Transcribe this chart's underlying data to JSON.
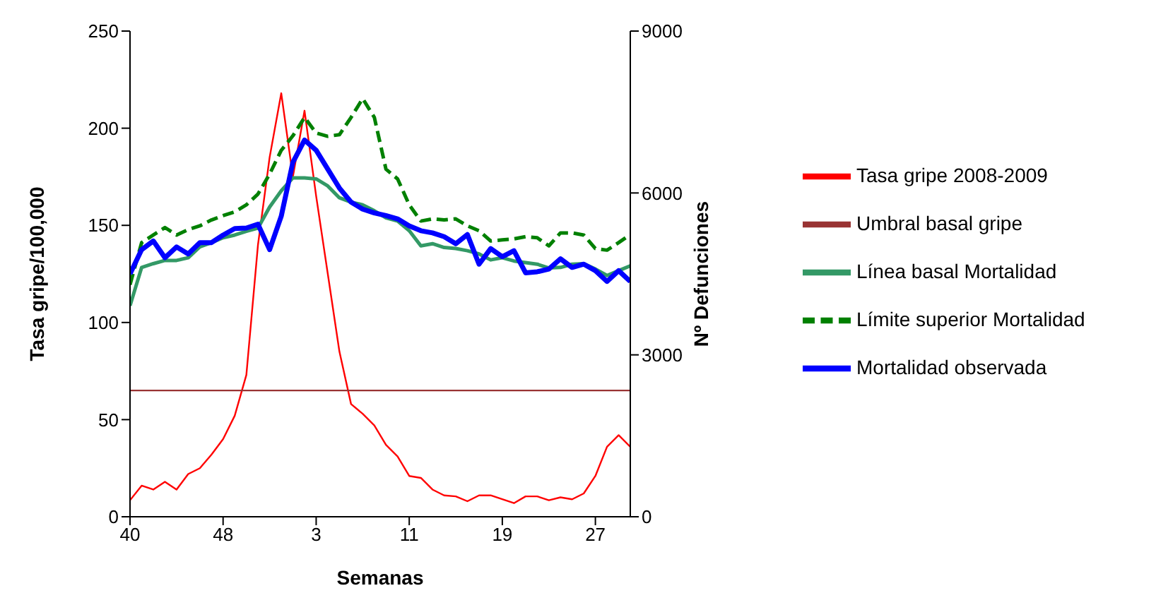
{
  "chart_data": {
    "type": "line",
    "categories": [
      "40",
      null,
      null,
      null,
      null,
      null,
      null,
      null,
      "48",
      null,
      null,
      null,
      null,
      null,
      null,
      null,
      "3",
      null,
      null,
      null,
      null,
      null,
      null,
      null,
      "11",
      null,
      null,
      null,
      null,
      null,
      null,
      null,
      "19",
      null,
      null,
      null,
      null,
      null,
      null,
      null,
      "27",
      null,
      null,
      null
    ],
    "series": [
      {
        "name": "Tasa gripe 2008-2009",
        "color": "#ff0000",
        "values": [
          8.5,
          16,
          14,
          18,
          14,
          22,
          25,
          32,
          40,
          52,
          73,
          140,
          185,
          218,
          175,
          209,
          165,
          125,
          85,
          58,
          53,
          47,
          37,
          31,
          21,
          20,
          14,
          11,
          10.5,
          8,
          11,
          11,
          9,
          7,
          10.5,
          10.5,
          8.5,
          10,
          9,
          12,
          21,
          36,
          42,
          36
        ]
      },
      {
        "name": "Umbral basal gripe",
        "color": "#993333",
        "values": [
          65,
          65,
          65,
          65,
          65,
          65,
          65,
          65,
          65,
          65,
          65,
          65,
          65,
          65,
          65,
          65,
          65,
          65,
          65,
          65,
          65,
          65,
          65,
          65,
          65,
          65,
          65,
          65,
          65,
          65,
          65,
          65,
          65,
          65,
          65,
          65,
          65,
          65,
          65,
          65,
          65,
          65,
          65,
          65
        ]
      },
      {
        "name": "Línea basal Mortalidad",
        "color": "#339966",
        "axis": "y2",
        "values": [
          3910,
          4620,
          4690,
          4750,
          4750,
          4800,
          5000,
          5080,
          5170,
          5220,
          5290,
          5350,
          5740,
          6040,
          6280,
          6280,
          6260,
          6130,
          5910,
          5830,
          5780,
          5670,
          5540,
          5480,
          5300,
          5020,
          5060,
          4990,
          4970,
          4930,
          4870,
          4760,
          4800,
          4740,
          4710,
          4680,
          4610,
          4620,
          4680,
          4690,
          4590,
          4470,
          4560,
          4650
        ]
      },
      {
        "name": "Límite superior Mortalidad",
        "color": "#008000",
        "axis": "y2",
        "line_style": "dashed",
        "values": [
          4300,
          5080,
          5220,
          5360,
          5220,
          5320,
          5390,
          5500,
          5580,
          5650,
          5780,
          5980,
          6350,
          6790,
          7060,
          7400,
          7110,
          7050,
          7080,
          7400,
          7750,
          7400,
          6440,
          6260,
          5780,
          5480,
          5520,
          5500,
          5520,
          5390,
          5300,
          5110,
          5130,
          5150,
          5190,
          5170,
          5020,
          5260,
          5260,
          5220,
          4970,
          4940,
          5080,
          5230
        ]
      },
      {
        "name": "Mortalidad observada",
        "color": "#0000ff",
        "axis": "y2",
        "values": [
          4500,
          4950,
          5110,
          4800,
          5000,
          4870,
          5080,
          5080,
          5220,
          5340,
          5350,
          5420,
          4950,
          5570,
          6570,
          6980,
          6790,
          6440,
          6090,
          5830,
          5700,
          5630,
          5580,
          5520,
          5390,
          5300,
          5260,
          5190,
          5060,
          5230,
          4680,
          4970,
          4820,
          4930,
          4520,
          4540,
          4590,
          4780,
          4620,
          4680,
          4560,
          4360,
          4560,
          4360
        ]
      }
    ],
    "xlabel": "Semanas",
    "ylabel": "Tasa gripe/100,000",
    "y2label": "Nº Defunciones",
    "ylim": [
      0,
      250
    ],
    "yticks": [
      0,
      50,
      100,
      150,
      200,
      250
    ],
    "y2lim": [
      0,
      9000
    ],
    "y2ticks": [
      0,
      3000,
      6000,
      9000
    ],
    "grid": false,
    "legend": "right",
    "marker": "none"
  }
}
